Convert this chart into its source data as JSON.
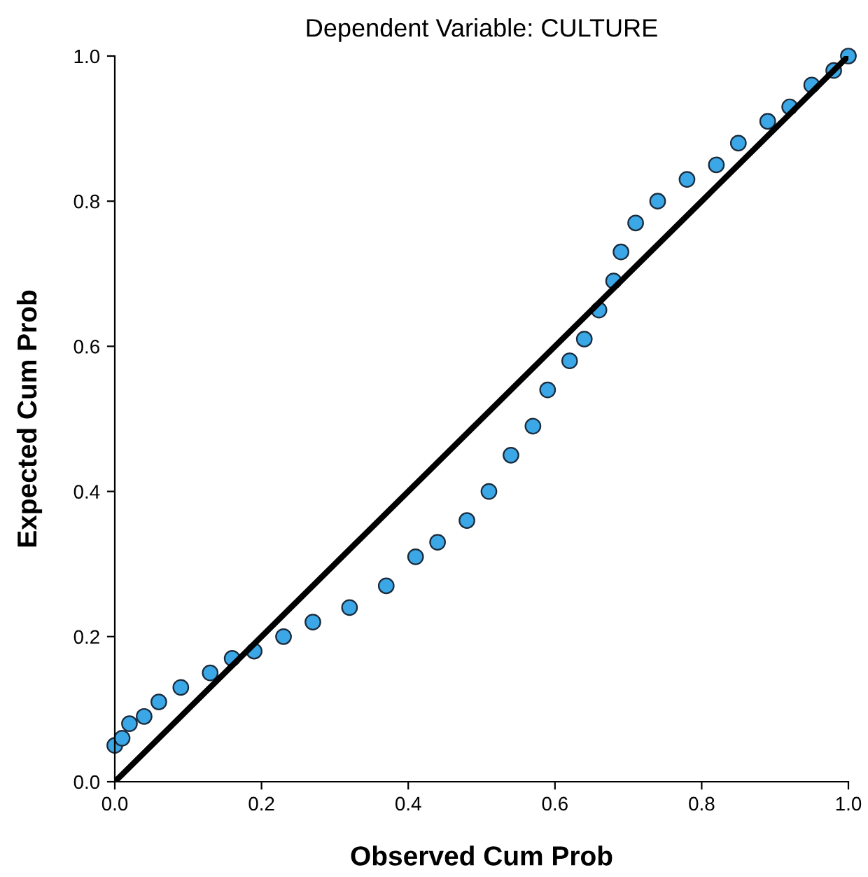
{
  "chart_data": {
    "type": "scatter",
    "title": "Dependent Variable: CULTURE",
    "xlabel": "Observed Cum Prob",
    "ylabel": "Expected Cum Prob",
    "xlim": [
      0,
      1
    ],
    "ylim": [
      0,
      1
    ],
    "xticks": [
      {
        "value": 0,
        "label": "0.0"
      },
      {
        "value": 0.2,
        "label": "0.2"
      },
      {
        "value": 0.4,
        "label": "0.4"
      },
      {
        "value": 0.6,
        "label": "0.6"
      },
      {
        "value": 0.8,
        "label": "0.8"
      },
      {
        "value": 1,
        "label": "1.0"
      }
    ],
    "yticks": [
      {
        "value": 0,
        "label": "0.0"
      },
      {
        "value": 0.2,
        "label": "0.2"
      },
      {
        "value": 0.4,
        "label": "0.4"
      },
      {
        "value": 0.6,
        "label": "0.6"
      },
      {
        "value": 0.8,
        "label": "0.8"
      },
      {
        "value": 1,
        "label": "1.0"
      }
    ],
    "grid": false,
    "legend": false,
    "series": [
      {
        "marker": "circle",
        "color": "#3ba7e6",
        "x": [
          0.0,
          0.01,
          0.02,
          0.04,
          0.06,
          0.09,
          0.13,
          0.16,
          0.19,
          0.23,
          0.27,
          0.32,
          0.37,
          0.41,
          0.44,
          0.48,
          0.51,
          0.54,
          0.57,
          0.59,
          0.62,
          0.64,
          0.66,
          0.68,
          0.69,
          0.71,
          0.74,
          0.78,
          0.82,
          0.85,
          0.89,
          0.92,
          0.95,
          0.98,
          1.0
        ],
        "values": [
          0.05,
          0.06,
          0.08,
          0.09,
          0.11,
          0.13,
          0.15,
          0.17,
          0.18,
          0.2,
          0.22,
          0.24,
          0.27,
          0.31,
          0.33,
          0.36,
          0.4,
          0.45,
          0.49,
          0.54,
          0.58,
          0.61,
          0.65,
          0.69,
          0.73,
          0.77,
          0.8,
          0.83,
          0.85,
          0.88,
          0.91,
          0.93,
          0.96,
          0.98,
          1.0
        ]
      },
      {
        "type": "line",
        "marker": "none",
        "color": "#000000",
        "x": [
          0,
          1
        ],
        "values": [
          0,
          1
        ]
      }
    ]
  }
}
